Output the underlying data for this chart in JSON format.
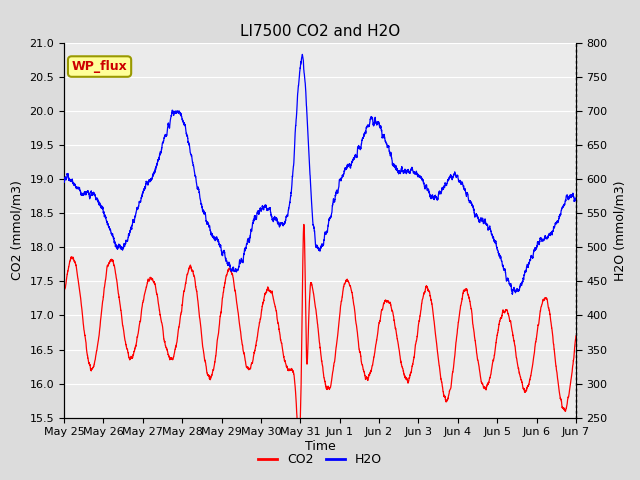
{
  "title": "LI7500 CO2 and H2O",
  "xlabel": "Time",
  "ylabel_left": "CO2 (mmol/m3)",
  "ylabel_right": "H2O (mmol/m3)",
  "annotation": "WP_flux",
  "ylim_left": [
    15.5,
    21.0
  ],
  "ylim_right": [
    250,
    800
  ],
  "yticks_left": [
    15.5,
    16.0,
    16.5,
    17.0,
    17.5,
    18.0,
    18.5,
    19.0,
    19.5,
    20.0,
    20.5,
    21.0
  ],
  "yticks_right": [
    250,
    300,
    350,
    400,
    450,
    500,
    550,
    600,
    650,
    700,
    750,
    800
  ],
  "xtick_labels": [
    "May 25",
    "May 26",
    "May 27",
    "May 28",
    "May 29",
    "May 30",
    "May 31",
    "Jun 1",
    "Jun 2",
    "Jun 3",
    "Jun 4",
    "Jun 5",
    "Jun 6",
    "Jun 7"
  ],
  "legend_labels": [
    "CO2",
    "H2O"
  ],
  "co2_color": "#ff0000",
  "h2o_color": "#0000ff",
  "background_color": "#dcdcdc",
  "plot_bg_color": "#ebebeb",
  "grid_color": "#ffffff",
  "annotation_bg": "#ffff99",
  "annotation_border": "#999900",
  "title_fontsize": 11,
  "axis_fontsize": 9,
  "tick_fontsize": 8,
  "legend_fontsize": 9
}
